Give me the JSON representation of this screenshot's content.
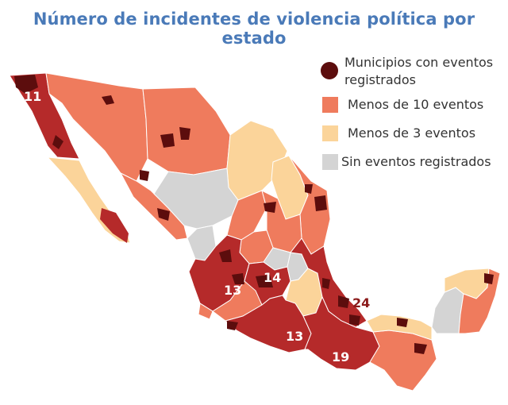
{
  "title": "Número de incidentes de violencia política por estado",
  "colors": {
    "municipios": "#5c0d0d",
    "high": "#b52a2a",
    "menos10": "#ef7b5d",
    "menos3": "#fbd49a",
    "sin": "#d4d4d4",
    "label_text": "#ffffff",
    "label_outside": "#8b1a1a"
  },
  "legend": {
    "municipios_line1": "Municipios con eventos",
    "municipios_line2": "registrados",
    "menos10": "Menos de 10 eventos",
    "menos3": "Menos de 3 eventos",
    "sin": "Sin eventos registrados"
  },
  "state_labels": {
    "baja_california": "11",
    "jalisco": "13",
    "mexico": "14",
    "guerrero": "13",
    "oaxaca": "19",
    "veracruz": "24"
  }
}
